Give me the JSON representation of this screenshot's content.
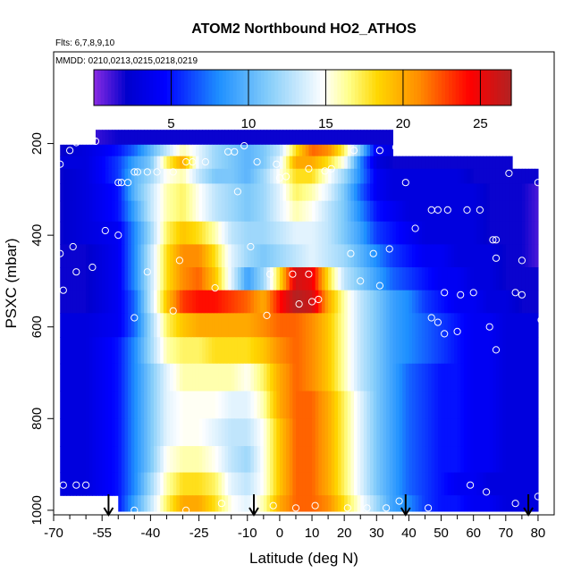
{
  "chart_data": {
    "type": "heatmap",
    "title": "ATOM2 Northbound HO2_ATHOS",
    "flights_label": "Flts: 6,7,8,9,10",
    "dates_label": "MMDD: 0210,0213,0215,0218,0219",
    "xlabel": "Latitude (deg N)",
    "ylabel": "PSXC (mbar)",
    "xlim": [
      -70,
      85
    ],
    "ylim": [
      1010,
      0
    ],
    "x_ticks": [
      -70,
      -55,
      -40,
      -25,
      -10,
      0,
      10,
      20,
      30,
      40,
      50,
      60,
      70,
      80
    ],
    "y_ticks": [
      200,
      400,
      600,
      800,
      1000
    ],
    "colorbar": {
      "min": 0,
      "max": 27,
      "ticks": [
        5,
        10,
        15,
        20,
        25
      ],
      "colors": [
        "#8a2be2",
        "#0000cd",
        "#0000ff",
        "#1e90ff",
        "#87cefa",
        "#ffffff",
        "#ffff8c",
        "#ffd700",
        "#ff8c00",
        "#ff0000",
        "#b22222"
      ],
      "stops": [
        0,
        0.08,
        0.17,
        0.3,
        0.42,
        0.55,
        0.61,
        0.68,
        0.78,
        0.9,
        1.0
      ]
    },
    "latitude_anchors": [
      -68,
      -60,
      -50,
      -45,
      -40,
      -35,
      -30,
      -25,
      -20,
      -15,
      -10,
      -5,
      0,
      5,
      10,
      15,
      20,
      25,
      30,
      35,
      40,
      45,
      50,
      55,
      60,
      65,
      70,
      75,
      80
    ],
    "pressure_levels": [
      {
        "p": 190,
        "lat_min": -57,
        "lat_max": 35,
        "values": [
          1,
          1,
          2,
          2,
          2,
          2,
          2,
          2,
          2,
          2,
          2,
          2,
          2,
          2,
          2,
          2,
          2,
          2,
          2,
          2,
          2,
          2,
          2,
          2,
          2,
          2,
          2,
          2,
          2
        ]
      },
      {
        "p": 215,
        "lat_min": -68,
        "lat_max": 35,
        "values": [
          2,
          3,
          5,
          7,
          10,
          13,
          16,
          14,
          12,
          11,
          10,
          11,
          13,
          18,
          22,
          21,
          17,
          11,
          4,
          3,
          3,
          3,
          3,
          3,
          3,
          3,
          3,
          3,
          3
        ]
      },
      {
        "p": 240,
        "lat_min": -68,
        "lat_max": 72,
        "values": [
          3,
          3,
          6,
          9,
          11,
          17,
          20,
          14,
          12,
          11,
          10,
          11,
          14,
          20,
          20,
          18,
          15,
          8,
          3,
          2,
          2,
          2,
          2,
          2,
          2,
          2,
          2,
          2,
          2
        ]
      },
      {
        "p": 270,
        "lat_min": -68,
        "lat_max": 80,
        "values": [
          2,
          3,
          6,
          10,
          12,
          15,
          16,
          13,
          11,
          11,
          10,
          12,
          15,
          18,
          18,
          15,
          12,
          8,
          4,
          3,
          3,
          3,
          3,
          3,
          2,
          2,
          2,
          2,
          2
        ]
      },
      {
        "p": 305,
        "lat_min": -68,
        "lat_max": 80,
        "values": [
          2,
          3,
          5,
          10,
          13,
          16,
          17,
          15,
          13,
          12,
          11,
          12,
          14,
          17,
          16,
          14,
          11,
          7,
          4,
          3,
          3,
          3,
          3,
          3,
          3,
          2,
          2,
          2,
          1
        ]
      },
      {
        "p": 345,
        "lat_min": -68,
        "lat_max": 80,
        "values": [
          2,
          3,
          5,
          9,
          13,
          16,
          17,
          15,
          13,
          12,
          11,
          12,
          14,
          16,
          15,
          13,
          11,
          8,
          5,
          4,
          3,
          3,
          3,
          3,
          3,
          2,
          2,
          2,
          1
        ]
      },
      {
        "p": 395,
        "lat_min": -68,
        "lat_max": 80,
        "values": [
          2,
          3,
          4,
          8,
          12,
          17,
          19,
          18,
          16,
          13,
          12,
          12,
          13,
          14,
          14,
          13,
          11,
          9,
          6,
          5,
          4,
          3,
          3,
          3,
          3,
          2,
          2,
          2,
          1
        ]
      },
      {
        "p": 445,
        "lat_min": -68,
        "lat_max": 80,
        "values": [
          2,
          2,
          4,
          8,
          13,
          18,
          21,
          21,
          18,
          14,
          12,
          11,
          12,
          13,
          14,
          13,
          12,
          10,
          8,
          6,
          5,
          4,
          4,
          3,
          3,
          3,
          2,
          2,
          1
        ]
      },
      {
        "p": 495,
        "lat_min": -68,
        "lat_max": 80,
        "values": [
          2,
          2,
          4,
          8,
          13,
          18,
          21,
          22,
          19,
          14,
          9,
          12,
          18,
          26,
          25,
          18,
          13,
          11,
          9,
          7,
          6,
          5,
          4,
          4,
          3,
          3,
          2,
          2,
          2
        ]
      },
      {
        "p": 545,
        "lat_min": -68,
        "lat_max": 80,
        "values": [
          2,
          2,
          4,
          7,
          13,
          19,
          23,
          24,
          24,
          23,
          22,
          20,
          24,
          27,
          26,
          20,
          16,
          13,
          11,
          9,
          8,
          6,
          5,
          4,
          4,
          3,
          3,
          2,
          2
        ]
      },
      {
        "p": 595,
        "lat_min": -68,
        "lat_max": 80,
        "values": [
          3,
          3,
          4,
          7,
          12,
          17,
          19,
          20,
          20,
          20,
          20,
          21,
          22,
          22,
          21,
          19,
          16,
          13,
          11,
          9,
          8,
          7,
          6,
          5,
          4,
          4,
          3,
          3,
          3
        ]
      },
      {
        "p": 650,
        "lat_min": -68,
        "lat_max": 80,
        "values": [
          3,
          3,
          5,
          8,
          12,
          16,
          17,
          17,
          18,
          18,
          18,
          19,
          21,
          22,
          21,
          19,
          16,
          13,
          11,
          9,
          8,
          7,
          6,
          5,
          4,
          4,
          3,
          3,
          3
        ]
      },
      {
        "p": 710,
        "lat_min": -68,
        "lat_max": 80,
        "values": [
          3,
          3,
          5,
          8,
          11,
          14,
          16,
          16,
          16,
          16,
          15,
          17,
          20,
          22,
          21,
          19,
          16,
          13,
          11,
          9,
          7,
          6,
          5,
          5,
          4,
          4,
          3,
          3,
          3
        ]
      },
      {
        "p": 770,
        "lat_min": -68,
        "lat_max": 80,
        "values": [
          3,
          3,
          5,
          8,
          11,
          14,
          15,
          15,
          15,
          14,
          14,
          16,
          20,
          22,
          22,
          20,
          17,
          14,
          11,
          9,
          7,
          6,
          5,
          5,
          4,
          4,
          3,
          3,
          3
        ]
      },
      {
        "p": 830,
        "lat_min": -68,
        "lat_max": 80,
        "values": [
          3,
          3,
          5,
          8,
          11,
          14,
          15,
          15,
          14,
          13,
          13,
          15,
          19,
          22,
          22,
          20,
          17,
          14,
          11,
          9,
          7,
          6,
          5,
          5,
          4,
          4,
          3,
          3,
          3
        ]
      },
      {
        "p": 890,
        "lat_min": -68,
        "lat_max": 80,
        "values": [
          3,
          3,
          5,
          8,
          11,
          15,
          16,
          16,
          15,
          13,
          12,
          15,
          19,
          22,
          22,
          20,
          17,
          14,
          11,
          9,
          7,
          6,
          5,
          5,
          4,
          4,
          3,
          3,
          3
        ]
      },
      {
        "p": 945,
        "lat_min": -68,
        "lat_max": 80,
        "values": [
          3,
          3,
          5,
          8,
          12,
          16,
          18,
          18,
          17,
          14,
          13,
          15,
          19,
          22,
          22,
          20,
          17,
          14,
          11,
          9,
          7,
          6,
          5,
          4,
          4,
          3,
          3,
          3,
          3
        ]
      },
      {
        "p": 990,
        "lat_min": -50,
        "lat_max": 80,
        "values": [
          3,
          3,
          5,
          9,
          13,
          17,
          20,
          20,
          18,
          15,
          14,
          16,
          20,
          22,
          22,
          21,
          18,
          15,
          12,
          9,
          8,
          6,
          5,
          5,
          4,
          4,
          3,
          3,
          3
        ]
      }
    ],
    "arrows_lat": [
      -53,
      -8,
      39,
      77
    ],
    "observations": [
      {
        "lat": -58,
        "p": 190
      },
      {
        "lat": -57,
        "p": 195
      },
      {
        "lat": -63,
        "p": 198
      },
      {
        "lat": -65,
        "p": 215
      },
      {
        "lat": -68,
        "p": 245
      },
      {
        "lat": -45,
        "p": 262
      },
      {
        "lat": -44,
        "p": 262
      },
      {
        "lat": -41,
        "p": 262
      },
      {
        "lat": -38,
        "p": 262
      },
      {
        "lat": -33,
        "p": 262
      },
      {
        "lat": -29,
        "p": 240
      },
      {
        "lat": -27,
        "p": 240
      },
      {
        "lat": -23,
        "p": 240
      },
      {
        "lat": -16,
        "p": 218
      },
      {
        "lat": -14,
        "p": 218
      },
      {
        "lat": -11,
        "p": 205
      },
      {
        "lat": -7,
        "p": 240
      },
      {
        "lat": -1,
        "p": 245
      },
      {
        "lat": 0,
        "p": 275
      },
      {
        "lat": 2,
        "p": 272
      },
      {
        "lat": 9,
        "p": 255
      },
      {
        "lat": 14,
        "p": 260
      },
      {
        "lat": 16,
        "p": 255
      },
      {
        "lat": 23,
        "p": 215
      },
      {
        "lat": 31,
        "p": 215
      },
      {
        "lat": 36,
        "p": 208
      },
      {
        "lat": -50,
        "p": 285
      },
      {
        "lat": -49,
        "p": 285
      },
      {
        "lat": -47,
        "p": 285
      },
      {
        "lat": -13,
        "p": 305
      },
      {
        "lat": 39,
        "p": 285
      },
      {
        "lat": 47,
        "p": 345
      },
      {
        "lat": 49,
        "p": 345
      },
      {
        "lat": 52,
        "p": 345
      },
      {
        "lat": 58,
        "p": 345
      },
      {
        "lat": 62,
        "p": 345
      },
      {
        "lat": 42,
        "p": 385
      },
      {
        "lat": -54,
        "p": 390
      },
      {
        "lat": -50,
        "p": 400
      },
      {
        "lat": 71,
        "p": 265
      },
      {
        "lat": 80,
        "p": 285
      },
      {
        "lat": -64,
        "p": 425
      },
      {
        "lat": -68,
        "p": 440
      },
      {
        "lat": -58,
        "p": 470
      },
      {
        "lat": -63,
        "p": 480
      },
      {
        "lat": -67,
        "p": 520
      },
      {
        "lat": -9,
        "p": 425
      },
      {
        "lat": 22,
        "p": 440
      },
      {
        "lat": 29,
        "p": 440
      },
      {
        "lat": 34,
        "p": 430
      },
      {
        "lat": 66,
        "p": 410
      },
      {
        "lat": 67,
        "p": 410
      },
      {
        "lat": 67,
        "p": 450
      },
      {
        "lat": 75,
        "p": 455
      },
      {
        "lat": -31,
        "p": 455
      },
      {
        "lat": -41,
        "p": 480
      },
      {
        "lat": -3,
        "p": 485
      },
      {
        "lat": 4,
        "p": 485
      },
      {
        "lat": 9,
        "p": 485
      },
      {
        "lat": 25,
        "p": 500
      },
      {
        "lat": 31,
        "p": 510
      },
      {
        "lat": -20,
        "p": 515
      },
      {
        "lat": 6,
        "p": 550
      },
      {
        "lat": 10,
        "p": 545
      },
      {
        "lat": 12,
        "p": 540
      },
      {
        "lat": 51,
        "p": 525
      },
      {
        "lat": 56,
        "p": 530
      },
      {
        "lat": 60,
        "p": 525
      },
      {
        "lat": 73,
        "p": 525
      },
      {
        "lat": 75,
        "p": 530
      },
      {
        "lat": -33,
        "p": 565
      },
      {
        "lat": -4,
        "p": 575
      },
      {
        "lat": -45,
        "p": 580
      },
      {
        "lat": 47,
        "p": 580
      },
      {
        "lat": 49,
        "p": 590
      },
      {
        "lat": 51,
        "p": 615
      },
      {
        "lat": 55,
        "p": 610
      },
      {
        "lat": 65,
        "p": 600
      },
      {
        "lat": 67,
        "p": 650
      },
      {
        "lat": 81,
        "p": 585
      },
      {
        "lat": -60,
        "p": 945
      },
      {
        "lat": -63,
        "p": 945
      },
      {
        "lat": -67,
        "p": 945
      },
      {
        "lat": 59,
        "p": 945
      },
      {
        "lat": 64,
        "p": 960
      },
      {
        "lat": 80,
        "p": 970
      },
      {
        "lat": 73,
        "p": 985
      },
      {
        "lat": -45,
        "p": 1000
      },
      {
        "lat": -29,
        "p": 1000
      },
      {
        "lat": -18,
        "p": 985
      },
      {
        "lat": -8,
        "p": 990
      },
      {
        "lat": -2,
        "p": 990
      },
      {
        "lat": 5,
        "p": 995
      },
      {
        "lat": 11,
        "p": 990
      },
      {
        "lat": 21,
        "p": 995
      },
      {
        "lat": 27,
        "p": 995
      },
      {
        "lat": 33,
        "p": 995
      },
      {
        "lat": 37,
        "p": 980
      },
      {
        "lat": 46,
        "p": 995
      }
    ]
  }
}
